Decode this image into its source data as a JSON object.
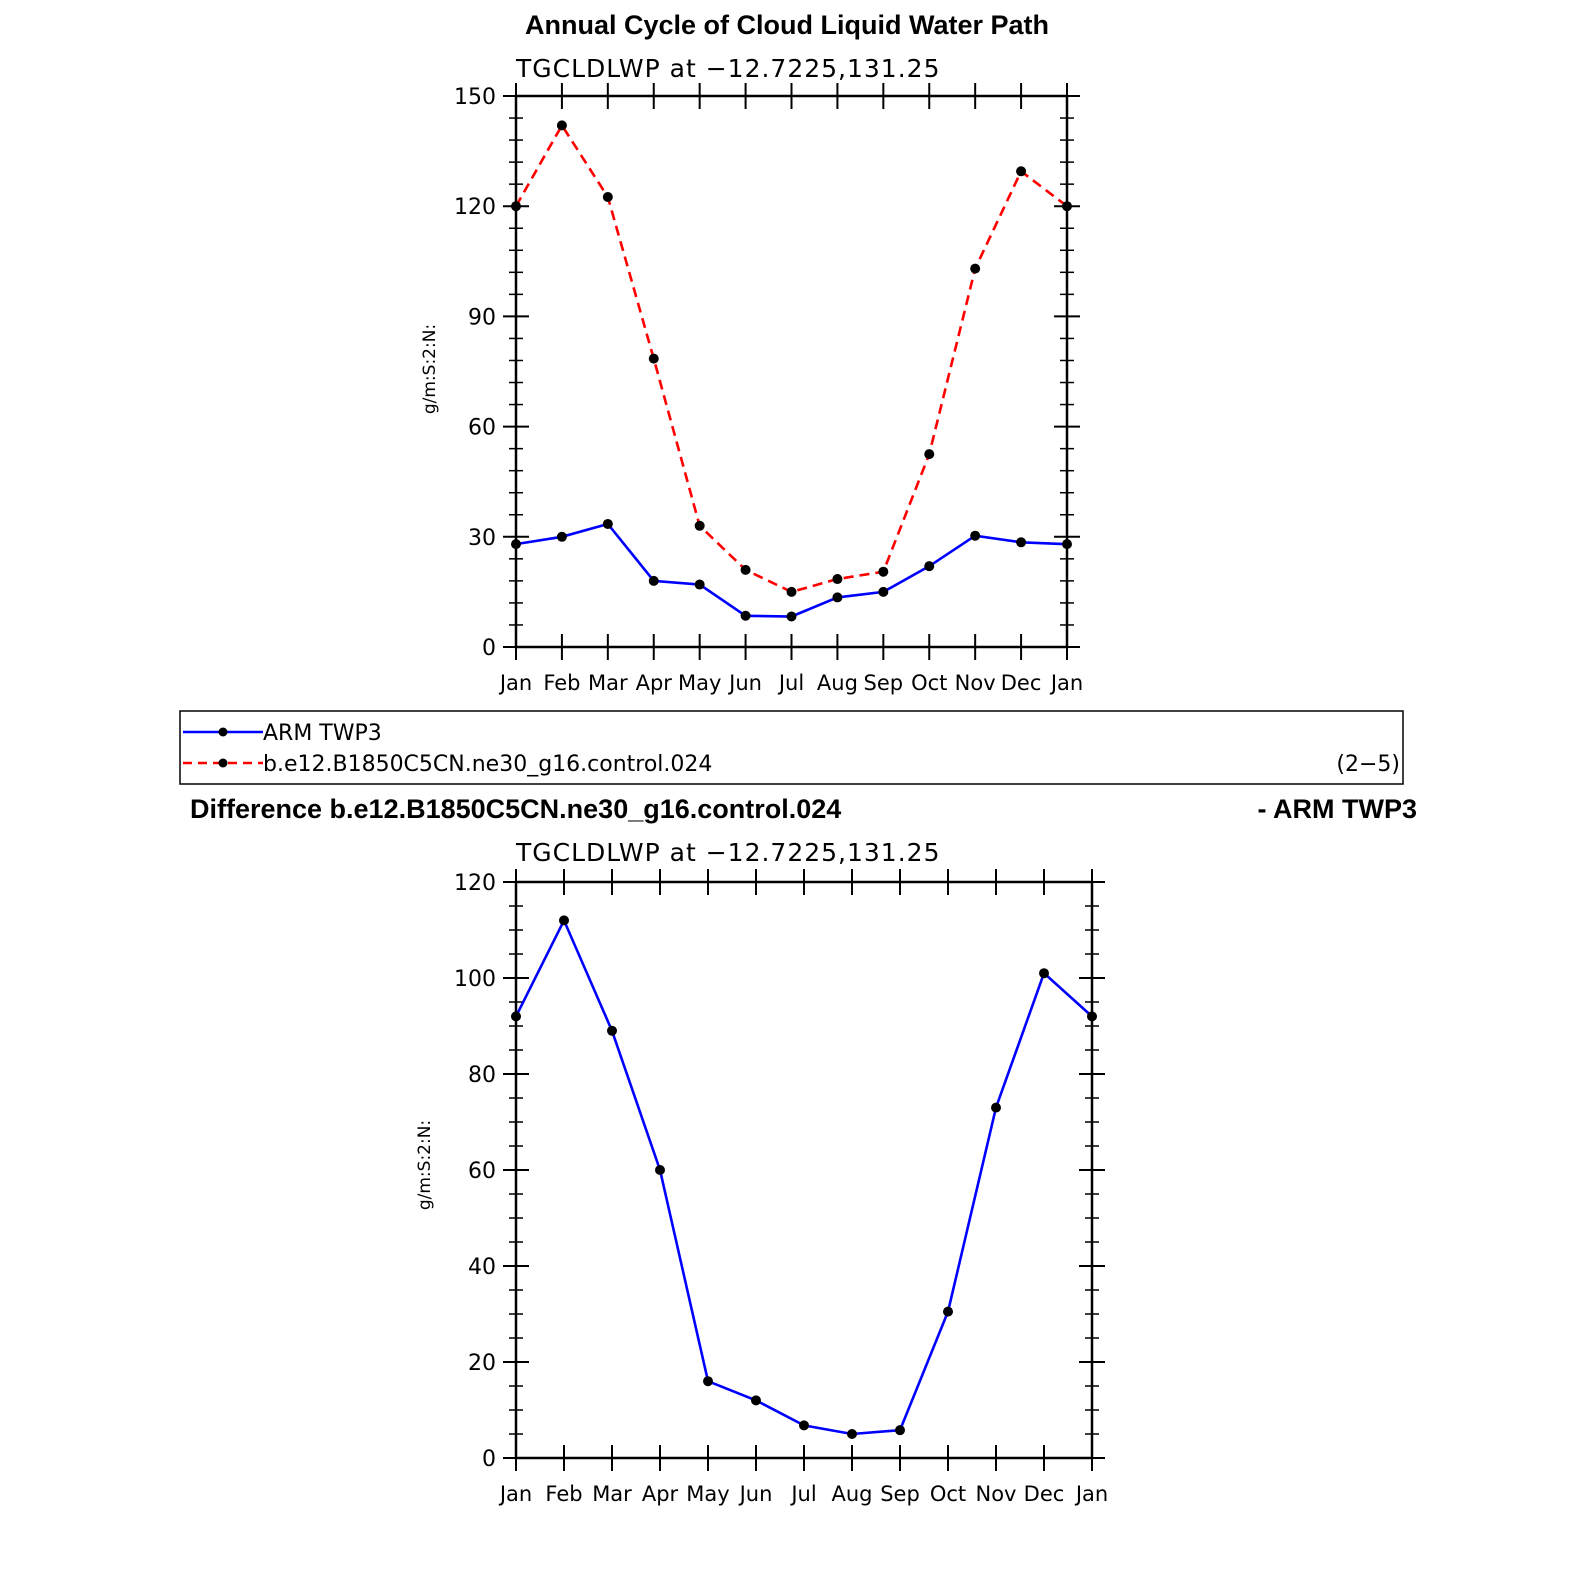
{
  "page": {
    "title": "Annual Cycle of Cloud Liquid Water Path",
    "diff_title_left": "Difference b.e12.B1850C5CN.ne30_g16.control.024",
    "diff_title_right": "- ARM TWP3"
  },
  "legend": {
    "items": [
      {
        "label": "ARM TWP3",
        "color": "#0000ff",
        "dash": "solid"
      },
      {
        "label": "b.e12.B1850C5CN.ne30_g16.control.024",
        "color": "#ff0000",
        "dash": "dashed"
      }
    ],
    "note": "(2−5)"
  },
  "chart_data": [
    {
      "type": "line",
      "subtitle": "TGCLDLWP  at  −12.7225,131.25",
      "ylabel": "g/m:S:2:N:",
      "categories": [
        "Jan",
        "Feb",
        "Mar",
        "Apr",
        "May",
        "Jun",
        "Jul",
        "Aug",
        "Sep",
        "Oct",
        "Nov",
        "Dec",
        "Jan"
      ],
      "ylim": [
        0,
        150
      ],
      "yticks": [
        "0",
        "30",
        "60",
        "90",
        "120",
        "150"
      ],
      "series": [
        {
          "name": "ARM TWP3",
          "color": "#0000ff",
          "dash": "solid",
          "values": [
            28,
            30,
            33.5,
            18,
            17,
            8.5,
            8.3,
            13.5,
            15,
            22,
            30.3,
            28.5,
            28
          ]
        },
        {
          "name": "b.e12.B1850C5CN.ne30_g16.control.024",
          "color": "#ff0000",
          "dash": "dashed",
          "values": [
            120,
            142,
            122.5,
            78.5,
            33,
            21,
            15,
            18.5,
            20.5,
            52.5,
            103,
            129.5,
            120
          ]
        }
      ]
    },
    {
      "type": "line",
      "subtitle": "TGCLDLWP  at  −12.7225,131.25",
      "ylabel": "g/m:S:2:N:",
      "categories": [
        "Jan",
        "Feb",
        "Mar",
        "Apr",
        "May",
        "Jun",
        "Jul",
        "Aug",
        "Sep",
        "Oct",
        "Nov",
        "Dec",
        "Jan"
      ],
      "ylim": [
        0,
        120
      ],
      "yticks": [
        "0",
        "20",
        "40",
        "60",
        "80",
        "100",
        "120"
      ],
      "series": [
        {
          "color": "#0000ff",
          "dash": "solid",
          "values": [
            92,
            112,
            89,
            60,
            16,
            12,
            6.8,
            5,
            5.8,
            30.5,
            73,
            101,
            92
          ]
        }
      ]
    }
  ]
}
